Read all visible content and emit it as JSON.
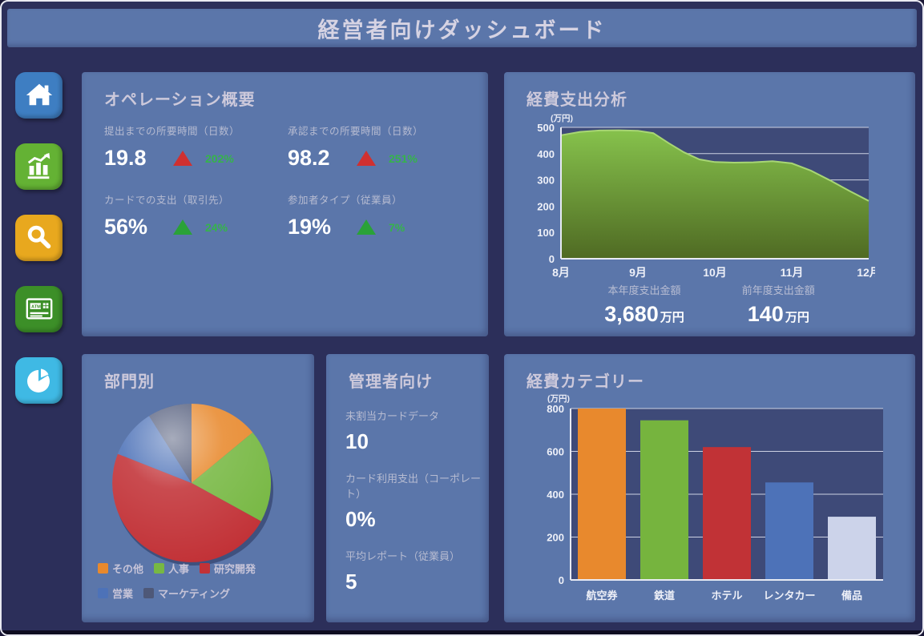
{
  "title": "経営者向けダッシュボード",
  "sidebar": {
    "items": [
      {
        "name": "home",
        "color": "#3e7ec2"
      },
      {
        "name": "analytics",
        "color": "#64b234"
      },
      {
        "name": "search",
        "color": "#e8a81e"
      },
      {
        "name": "atm",
        "color": "#3c8f28"
      },
      {
        "name": "pie",
        "color": "#3fb9e4"
      }
    ]
  },
  "panels": {
    "operations": {
      "title": "オペレーション概要",
      "kpis": [
        {
          "label": "提出までの所要時間（日数）",
          "value": "19.8",
          "trend": "up-red",
          "delta": "202%"
        },
        {
          "label": "承認までの所要時間（日数）",
          "value": "98.2",
          "trend": "up-red",
          "delta": "251%"
        },
        {
          "label": "カードでの支出（取引先）",
          "value": "56%",
          "trend": "up-green",
          "delta": "24%"
        },
        {
          "label": "参加者タイプ（従業員）",
          "value": "19%",
          "trend": "up-green",
          "delta": "7%"
        }
      ]
    },
    "expense_analysis": {
      "title": "経費支出分析",
      "unit": "(万円)",
      "stats": [
        {
          "label": "本年度支出金額",
          "value": "3,680",
          "suffix": "万円"
        },
        {
          "label": "前年度支出金額",
          "value": "140",
          "suffix": "万円"
        }
      ]
    },
    "department": {
      "title": "部門別"
    },
    "admin": {
      "title": "管理者向け",
      "items": [
        {
          "label": "未割当カードデータ",
          "value": "10"
        },
        {
          "label": "カード利用支出（コーポレート）",
          "value": "0%"
        },
        {
          "label": "平均レポート（従業員）",
          "value": "5"
        }
      ]
    },
    "categories": {
      "title": "経費カテゴリー",
      "unit": "(万円)"
    }
  },
  "chart_data": [
    {
      "id": "expense-trend",
      "type": "area",
      "title": "経費支出分析",
      "ylabel": "万円",
      "ylim": [
        0,
        500
      ],
      "yticks": [
        500,
        400,
        300,
        200,
        100,
        0
      ],
      "xticks": [
        "8月",
        "9月",
        "10月",
        "11月",
        "12月"
      ],
      "x": [
        8,
        8.25,
        8.5,
        8.75,
        9,
        9.2,
        9.4,
        9.6,
        9.8,
        10,
        10.25,
        10.5,
        10.75,
        11,
        11.25,
        11.5,
        11.75,
        12
      ],
      "values": [
        470,
        483,
        488,
        489,
        487,
        478,
        440,
        405,
        378,
        368,
        366,
        367,
        371,
        363,
        335,
        298,
        258,
        220
      ],
      "fill_top": "#86c24c",
      "fill_bottom": "#4f6a23",
      "plot_bg": "#3e4a78",
      "grid": true,
      "legend": "none"
    },
    {
      "id": "expense-categories",
      "type": "bar",
      "title": "経費カテゴリー",
      "ylabel": "万円",
      "ylim": [
        0,
        800
      ],
      "yticks": [
        800,
        600,
        400,
        200,
        0
      ],
      "categories": [
        "航空券",
        "鉄道",
        "ホテル",
        "レンタカー",
        "備品"
      ],
      "values": [
        800,
        745,
        620,
        455,
        295
      ],
      "colors": [
        "#e8892d",
        "#76b43e",
        "#c13236",
        "#4d72b8",
        "#ccd3ea"
      ],
      "plot_bg": "#3e4a78",
      "grid": true,
      "legend": "none"
    },
    {
      "id": "department-pie",
      "type": "pie",
      "title": "部門別",
      "slices": [
        {
          "label": "その他",
          "percent": 14,
          "color": "#e8892d"
        },
        {
          "label": "人事",
          "percent": 19,
          "color": "#77b843"
        },
        {
          "label": "研究開発",
          "percent": 48,
          "color": "#c23237"
        },
        {
          "label": "営業",
          "percent": 10,
          "color": "#4d72b8"
        },
        {
          "label": "マーケティング",
          "percent": 9,
          "color": "#4e5878"
        }
      ],
      "legend_break_after": 2,
      "legend_position": "bottom"
    }
  ]
}
